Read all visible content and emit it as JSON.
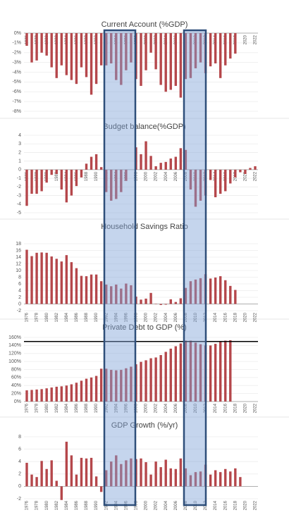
{
  "chart_data": [
    {
      "type": "bar",
      "title": "Current Account (%GDP)",
      "categories": [
        "1976",
        null,
        "1978",
        null,
        "1980",
        null,
        "1982",
        null,
        "1984",
        null,
        "1986",
        null,
        "1988",
        null,
        "1990",
        null,
        "1992",
        null,
        "1994",
        null,
        "1996",
        null,
        "1998",
        null,
        "2000",
        null,
        "2002",
        null,
        "2004",
        null,
        "2006",
        null,
        "2008",
        null,
        "2010",
        null,
        "2012",
        null,
        "2014",
        null,
        "2016",
        null,
        "2018",
        null,
        "2020",
        null,
        "2022"
      ],
      "values": [
        -1.3,
        -3.0,
        -2.8,
        -2.0,
        -2.3,
        -3.5,
        -4.6,
        -3.3,
        -4.3,
        -4.8,
        -5.2,
        -3.5,
        -4.5,
        -6.3,
        -5.2,
        -3.3,
        -3.3,
        -3.1,
        -4.8,
        -5.3,
        -3.8,
        -3.0,
        -4.7,
        -5.4,
        -3.8,
        -2.0,
        -3.7,
        -5.3,
        -6.0,
        -5.8,
        -5.4,
        -6.6,
        -4.7,
        -4.6,
        -3.6,
        -3.0,
        -4.1,
        -3.4,
        -3.1,
        -4.6,
        -3.3,
        -2.6,
        -2.1,
        null,
        null,
        null,
        null
      ],
      "color": "#b5474b",
      "ylim": [
        -8,
        0
      ],
      "yticks": [
        {
          "value": 0,
          "label": "0%"
        },
        {
          "value": -1,
          "label": "-1%"
        },
        {
          "value": -2,
          "label": "-2%"
        },
        {
          "value": -3,
          "label": "-3%"
        },
        {
          "value": -4,
          "label": "-4%"
        },
        {
          "value": -5,
          "label": "-5%"
        },
        {
          "value": -6,
          "label": "-6%"
        },
        {
          "value": -7,
          "label": "-7%"
        },
        {
          "value": -8,
          "label": "-8%"
        }
      ],
      "grid": true
    },
    {
      "type": "bar",
      "title": "Budget balance(%GDP)",
      "categories": [
        "1976",
        null,
        "1978",
        null,
        "1980",
        null,
        "1982",
        null,
        "1984",
        null,
        "1986",
        null,
        "1988",
        null,
        "1990",
        null,
        "1992",
        null,
        "1994",
        null,
        "1996",
        null,
        "1998",
        null,
        "2000",
        null,
        "2002",
        null,
        "2004",
        null,
        "2006",
        null,
        "2008",
        null,
        "2010",
        null,
        "2012",
        null,
        "2014",
        null,
        "2016",
        null,
        "2018",
        null,
        "2020",
        null,
        "2022"
      ],
      "values": [
        -4.2,
        -2.8,
        -2.8,
        -2.5,
        -1.5,
        -0.6,
        -0.5,
        -2.3,
        -3.8,
        -3,
        -1.9,
        -0.9,
        0.7,
        1.5,
        1.8,
        0.3,
        -2.6,
        -3.6,
        -3.4,
        -2.6,
        -1.3,
        0,
        2.6,
        1.8,
        3.3,
        1.6,
        0.4,
        0.8,
        0.9,
        1.3,
        1.5,
        2.5,
        2.3,
        -2.3,
        -4.3,
        -3.6,
        -3,
        -1.2,
        -3.2,
        -2.8,
        -2.5,
        -1.6,
        -0.9,
        -0.3,
        -0.5,
        0.2,
        0.4
      ],
      "color": "#b5474b",
      "ylim": [
        -5,
        4
      ],
      "yticks": [
        -5,
        -4,
        -3,
        -2,
        -1,
        0,
        1,
        2,
        3,
        4
      ],
      "grid": true
    },
    {
      "type": "bar",
      "title": "Household Savings Ratio",
      "categories": [
        "1976",
        null,
        "1978",
        null,
        "1980",
        null,
        "1982",
        null,
        "1984",
        null,
        "1986",
        null,
        "1988",
        null,
        "1990",
        null,
        "1992",
        null,
        "1994",
        null,
        "1996",
        null,
        "1998",
        null,
        "2000",
        null,
        "2002",
        null,
        "2004",
        null,
        "2006",
        null,
        "2008",
        null,
        "2010",
        null,
        "2012",
        null,
        "2014",
        null,
        "2016",
        null,
        "2018",
        null,
        "2020",
        null,
        "2022"
      ],
      "values": [
        16.2,
        14.3,
        15.3,
        15.4,
        15.3,
        14.2,
        13.5,
        12.7,
        14.6,
        12.5,
        10.7,
        8.4,
        8.3,
        8.8,
        8.8,
        6.8,
        5.8,
        5.3,
        5.8,
        4.6,
        6.1,
        5.6,
        2.2,
        1.3,
        1.6,
        3.3,
        0.1,
        -0.3,
        -0.2,
        1.4,
        0.6,
        1.7,
        4.8,
        6.8,
        7.3,
        7.7,
        8.9,
        7.6,
        7.9,
        8.3,
        7.1,
        5.4,
        4.2,
        null,
        null,
        null,
        null
      ],
      "color": "#b5474b",
      "ylim": [
        -2,
        18
      ],
      "yticks": [
        -2,
        0,
        2,
        4,
        6,
        8,
        10,
        12,
        14,
        16,
        18
      ],
      "grid": true
    },
    {
      "type": "bar",
      "title": "Private Debt to GDP (%)",
      "categories": [
        "1976",
        null,
        "1978",
        null,
        "1980",
        null,
        "1982",
        null,
        "1984",
        null,
        "1986",
        null,
        "1988",
        null,
        "1990",
        null,
        "1992",
        null,
        "1994",
        null,
        "1996",
        null,
        "1998",
        null,
        "2000",
        null,
        "2002",
        null,
        "2004",
        null,
        "2006",
        null,
        "2008",
        null,
        "2010",
        null,
        "2012",
        null,
        "2014",
        null,
        "2016",
        null,
        "2018",
        null,
        "2020",
        null,
        "2022"
      ],
      "values": [
        28,
        29,
        30,
        31,
        33,
        35,
        37,
        38,
        40,
        43,
        47,
        52,
        57,
        60,
        64,
        82,
        82,
        79,
        78,
        79,
        83,
        87,
        93,
        99,
        103,
        108,
        110,
        116,
        124,
        132,
        138,
        145,
        152,
        152,
        147,
        143,
        140,
        140,
        144,
        149,
        152,
        153,
        null,
        null,
        null,
        null,
        null
      ],
      "color": "#b5474b",
      "ylim": [
        0,
        160
      ],
      "yticks": [
        {
          "value": 0,
          "label": "0%"
        },
        {
          "value": 20,
          "label": "20%"
        },
        {
          "value": 40,
          "label": "40%"
        },
        {
          "value": 60,
          "label": "60%"
        },
        {
          "value": 80,
          "label": "80%"
        },
        {
          "value": 100,
          "label": "100%"
        },
        {
          "value": 120,
          "label": "120%"
        },
        {
          "value": 140,
          "label": "140%"
        },
        {
          "value": 160,
          "label": "160%"
        }
      ],
      "grid": true,
      "reference_line": 150,
      "reference_color": "#000000"
    },
    {
      "type": "bar",
      "title": "GDP Growth (%/yr)",
      "categories": [
        "1976",
        null,
        "1978",
        null,
        "1980",
        null,
        "1982",
        null,
        "1984",
        null,
        "1986",
        null,
        "1988",
        null,
        "1990",
        null,
        "1992",
        null,
        "1994",
        null,
        "1996",
        null,
        "1998",
        null,
        "2000",
        null,
        "2002",
        null,
        "2004",
        null,
        "2006",
        null,
        "2008",
        null,
        "2010",
        null,
        "2012",
        null,
        "2014",
        null,
        "2016",
        null,
        "2018",
        null,
        "2020",
        null,
        "2022"
      ],
      "values": [
        3.8,
        1.9,
        1.5,
        4.1,
        2.8,
        4.2,
        0.9,
        -2.2,
        7.2,
        5.0,
        1.9,
        4.6,
        4.5,
        4.6,
        1.6,
        -0.9,
        2.6,
        4.0,
        5.0,
        3.6,
        4.2,
        4.5,
        4.4,
        4.5,
        3.9,
        1.9,
        4.0,
        3.1,
        4.3,
        2.9,
        2.8,
        4.5,
        2.9,
        1.8,
        2.3,
        2.4,
        3.5,
        1.9,
        2.6,
        2.3,
        2.8,
        2.4,
        2.9,
        1.5,
        null,
        null,
        null
      ],
      "color": "#b5474b",
      "ylim": [
        -2,
        8
      ],
      "yticks": [
        -2,
        0,
        2,
        4,
        6,
        8
      ],
      "grid": true
    }
  ]
}
